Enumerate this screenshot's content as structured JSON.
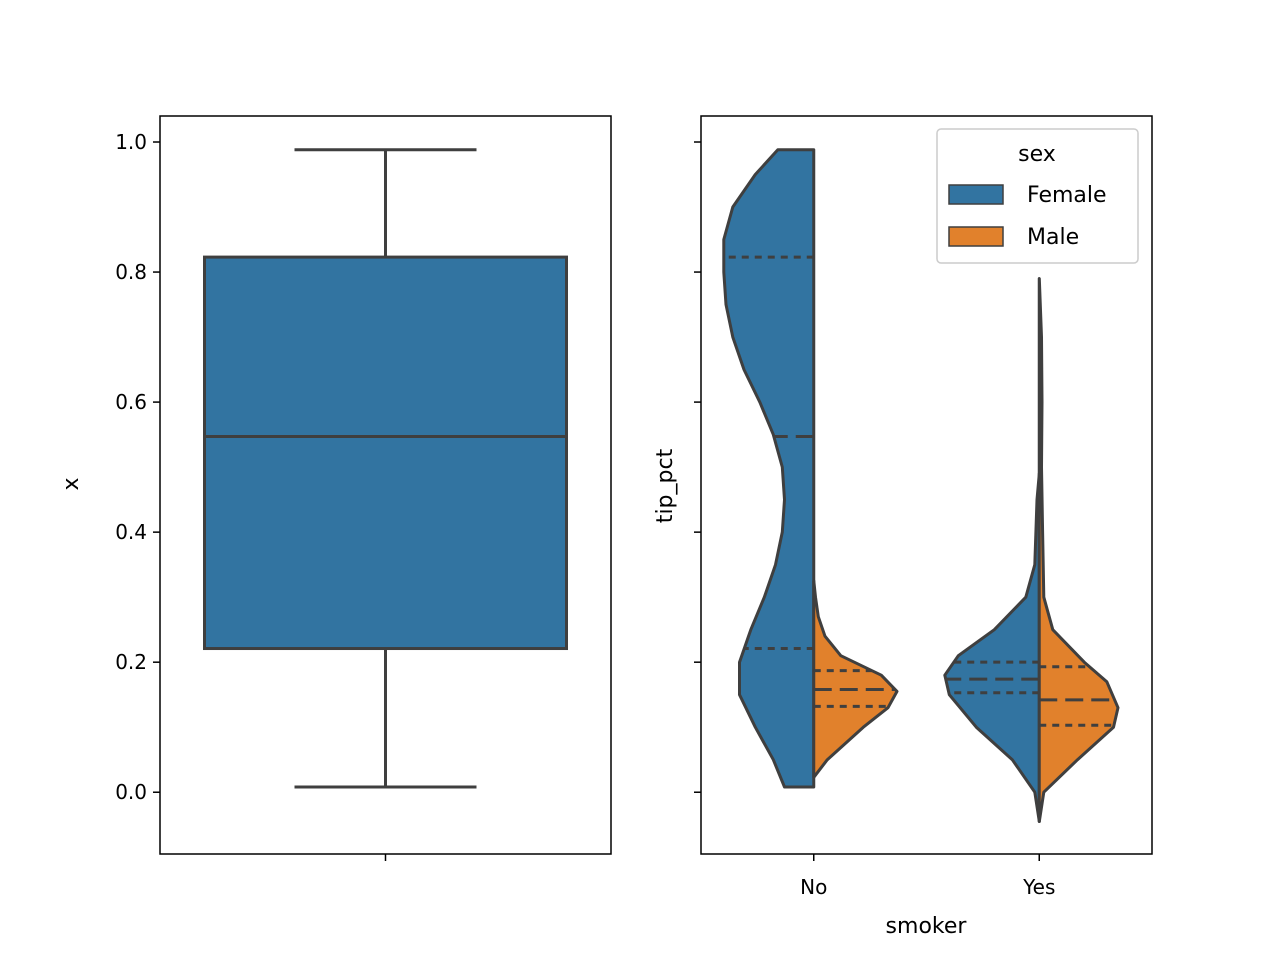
{
  "chart_data": [
    {
      "type": "box",
      "xlabel": "",
      "ylabel": "x",
      "ylim": [
        -0.095,
        1.04
      ],
      "y_ticks": [
        "0.0",
        "0.2",
        "0.4",
        "0.6",
        "0.8",
        "1.0"
      ],
      "y_tick_values": [
        0.0,
        0.2,
        0.4,
        0.6,
        0.8,
        1.0
      ],
      "box": {
        "whisker_low": 0.008,
        "q1": 0.221,
        "median": 0.547,
        "q3": 0.823,
        "whisker_high": 0.988
      },
      "color": "#3274a1"
    },
    {
      "type": "violin",
      "split": true,
      "inner": "quartile",
      "xlabel": "smoker",
      "ylabel": "tip_pct",
      "ylim": [
        -0.095,
        1.04
      ],
      "categories": [
        "No",
        "Yes"
      ],
      "legend": {
        "title": "sex",
        "entries": [
          {
            "label": "Female",
            "color": "#3274a1"
          },
          {
            "label": "Male",
            "color": "#e1812c"
          }
        ]
      },
      "series": [
        {
          "name": "Female",
          "color": "#3274a1",
          "groups": [
            {
              "category": "No",
              "range": [
                0.008,
                0.988
              ],
              "quartiles": [
                0.221,
                0.547,
                0.823
              ],
              "profile": [
                [
                  0.008,
                  0.13
                ],
                [
                  0.05,
                  0.18
                ],
                [
                  0.1,
                  0.26
                ],
                [
                  0.15,
                  0.33
                ],
                [
                  0.2,
                  0.33
                ],
                [
                  0.25,
                  0.28
                ],
                [
                  0.3,
                  0.22
                ],
                [
                  0.35,
                  0.17
                ],
                [
                  0.4,
                  0.14
                ],
                [
                  0.45,
                  0.13
                ],
                [
                  0.5,
                  0.14
                ],
                [
                  0.55,
                  0.18
                ],
                [
                  0.6,
                  0.24
                ],
                [
                  0.65,
                  0.31
                ],
                [
                  0.7,
                  0.36
                ],
                [
                  0.75,
                  0.39
                ],
                [
                  0.8,
                  0.4
                ],
                [
                  0.85,
                  0.4
                ],
                [
                  0.9,
                  0.36
                ],
                [
                  0.95,
                  0.26
                ],
                [
                  0.988,
                  0.16
                ]
              ]
            },
            {
              "category": "Yes",
              "range": [
                -0.045,
                0.49
              ],
              "quartiles": [
                0.153,
                0.174,
                0.2
              ],
              "profile": [
                [
                  -0.045,
                  0.0
                ],
                [
                  0.0,
                  0.02
                ],
                [
                  0.05,
                  0.12
                ],
                [
                  0.1,
                  0.28
                ],
                [
                  0.15,
                  0.4
                ],
                [
                  0.18,
                  0.42
                ],
                [
                  0.21,
                  0.36
                ],
                [
                  0.25,
                  0.2
                ],
                [
                  0.3,
                  0.06
                ],
                [
                  0.35,
                  0.02
                ],
                [
                  0.4,
                  0.015
                ],
                [
                  0.45,
                  0.01
                ],
                [
                  0.49,
                  0.0
                ]
              ]
            }
          ]
        },
        {
          "name": "Male",
          "color": "#e1812c",
          "groups": [
            {
              "category": "No",
              "range": [
                0.023,
                0.325
              ],
              "quartiles": [
                0.132,
                0.158,
                0.187
              ],
              "profile": [
                [
                  0.023,
                  0.0
                ],
                [
                  0.05,
                  0.06
                ],
                [
                  0.1,
                  0.22
                ],
                [
                  0.13,
                  0.33
                ],
                [
                  0.155,
                  0.37
                ],
                [
                  0.18,
                  0.3
                ],
                [
                  0.21,
                  0.12
                ],
                [
                  0.24,
                  0.05
                ],
                [
                  0.27,
                  0.02
                ],
                [
                  0.3,
                  0.008
                ],
                [
                  0.325,
                  0.0
                ]
              ]
            },
            {
              "category": "Yes",
              "range": [
                -0.045,
                0.79
              ],
              "quartiles": [
                0.103,
                0.142,
                0.193
              ],
              "profile": [
                [
                  -0.045,
                  0.0
                ],
                [
                  0.0,
                  0.02
                ],
                [
                  0.05,
                  0.17
                ],
                [
                  0.1,
                  0.33
                ],
                [
                  0.13,
                  0.35
                ],
                [
                  0.17,
                  0.3
                ],
                [
                  0.2,
                  0.2
                ],
                [
                  0.25,
                  0.06
                ],
                [
                  0.3,
                  0.02
                ],
                [
                  0.4,
                  0.015
                ],
                [
                  0.5,
                  0.01
                ],
                [
                  0.6,
                  0.012
                ],
                [
                  0.7,
                  0.01
                ],
                [
                  0.79,
                  0.0
                ]
              ]
            }
          ]
        }
      ]
    }
  ]
}
